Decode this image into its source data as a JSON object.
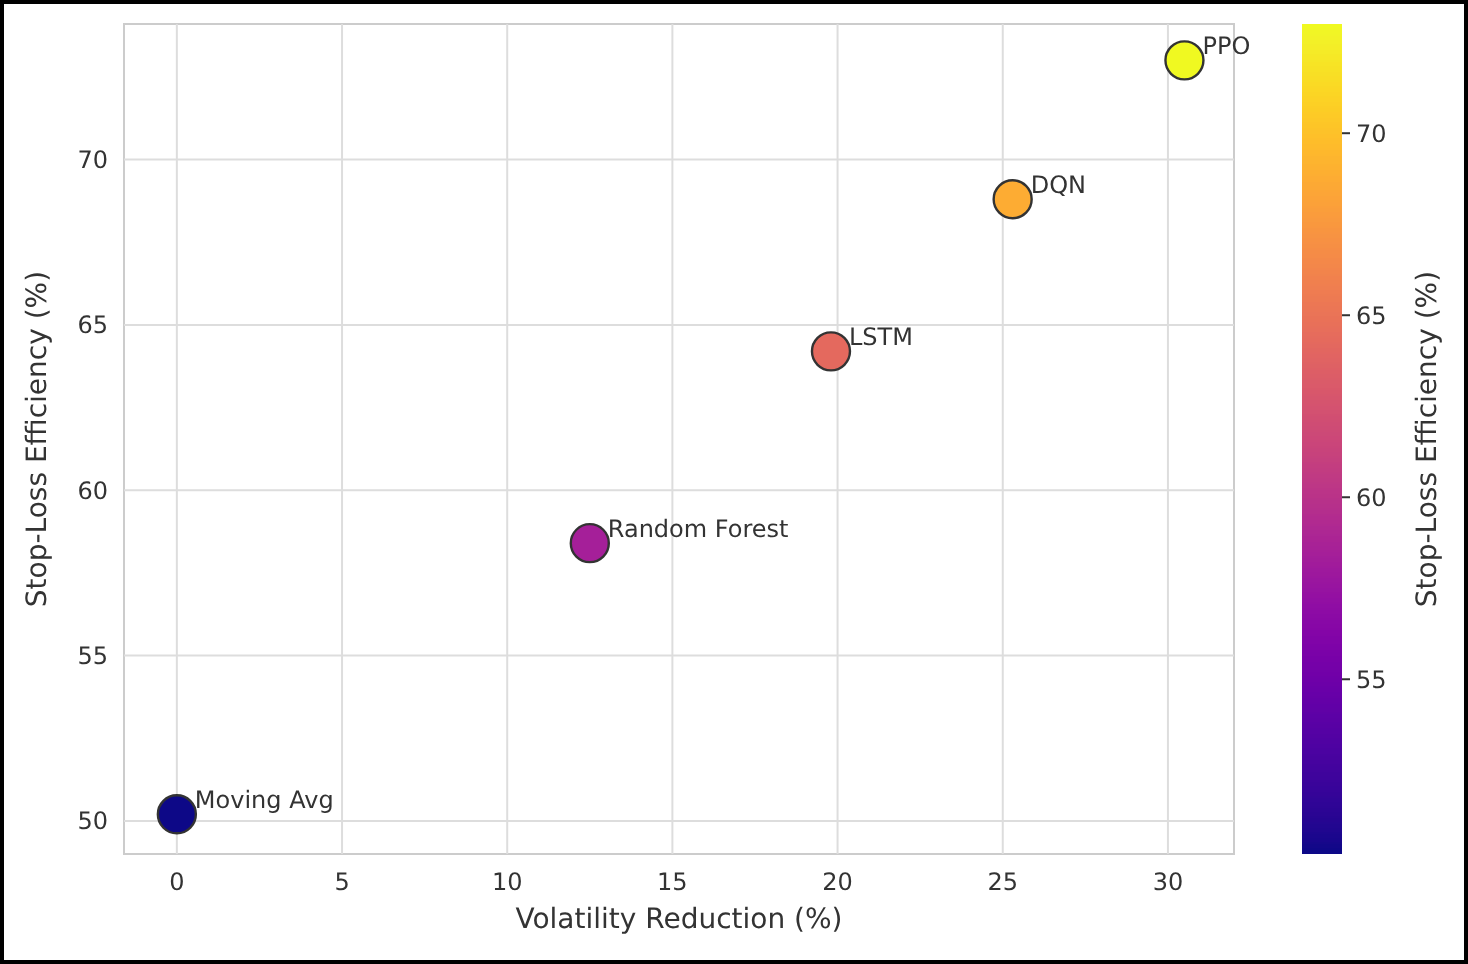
{
  "chart_data": {
    "type": "scatter",
    "xlabel": "Volatility Reduction (%)",
    "ylabel": "Stop-Loss Efficiency (%)",
    "clabel": "Stop-Loss Efficiency (%)",
    "x": [
      0,
      12.5,
      19.8,
      25.3,
      30.5
    ],
    "values": [
      50.2,
      58.4,
      64.2,
      68.8,
      73.0
    ],
    "cvalues": [
      50.2,
      58.4,
      64.2,
      68.8,
      73.0
    ],
    "clim": [
      50.2,
      73.0
    ],
    "cticks": [
      55,
      60,
      65,
      70
    ],
    "xlim": [
      -1.6,
      32
    ],
    "xticks": [
      0,
      5,
      10,
      15,
      20,
      25,
      30
    ],
    "ylim": [
      49,
      74.1
    ],
    "yticks": [
      50,
      55,
      60,
      65,
      70
    ],
    "grid": true,
    "marker": "circle",
    "annotations": [
      {
        "text": "Moving Avg",
        "x": 0,
        "y": 50.2
      },
      {
        "text": "Random Forest",
        "x": 12.5,
        "y": 58.4
      },
      {
        "text": "LSTM",
        "x": 19.8,
        "y": 64.2
      },
      {
        "text": "DQN",
        "x": 25.3,
        "y": 68.8
      },
      {
        "text": "PPO",
        "x": 30.5,
        "y": 73.0
      }
    ]
  }
}
